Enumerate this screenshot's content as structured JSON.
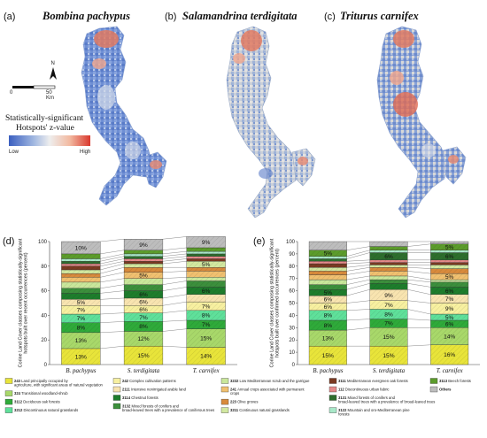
{
  "panels": {
    "a": {
      "letter": "(a)",
      "species": "Bombina pachypus"
    },
    "b": {
      "letter": "(b)",
      "species": "Salamandrina terdigitata"
    },
    "c": {
      "letter": "(c)",
      "species": "Triturus carnifex"
    },
    "d": {
      "letter": "(d)"
    },
    "e": {
      "letter": "(e)"
    }
  },
  "map_legend": {
    "north": "N",
    "scale_0": "0",
    "scale_50": "50",
    "scale_unit": "Km",
    "title_line1": "Statistically-significant",
    "title_line2": "Hotspots' z-value",
    "low": "Low",
    "high": "High",
    "gradient_colors": [
      "#3b5fc0",
      "#9fb6e0",
      "#eeeeee",
      "#f2b9a0",
      "#d9382e"
    ]
  },
  "chart_data": [
    {
      "type": "bar",
      "stacked": true,
      "panel": "(d)",
      "categories": [
        "B. pachypus",
        "S. terdigitata",
        "T. carnifex"
      ],
      "ylabel": "Corine Land Cover classes composing statistically-significant hotspots built over recent occurrences (percent)",
      "ylim": [
        0,
        100
      ],
      "yticks": [
        0,
        20,
        40,
        60,
        80,
        100
      ],
      "series": [
        {
          "code": "243",
          "color": "#e8e43a",
          "values": [
            13,
            15,
            14
          ]
        },
        {
          "code": "324",
          "color": "#a8d86a",
          "values": [
            13,
            12,
            15
          ]
        },
        {
          "code": "3112",
          "color": "#2faa3a",
          "values": [
            8,
            8,
            7
          ]
        },
        {
          "code": "3212",
          "color": "#5fe09a",
          "values": [
            7,
            7,
            8
          ]
        },
        {
          "code": "242",
          "color": "#f7f0a0",
          "values": [
            7,
            6,
            7
          ]
        },
        {
          "code": "2111",
          "color": "#f8e4b0",
          "values": [
            5,
            6,
            6
          ]
        },
        {
          "code": "3114",
          "color": "#1e7d2c",
          "values": [
            5,
            6,
            6
          ]
        },
        {
          "code": "3132",
          "color": "#3c8f3c",
          "values": [
            4,
            5,
            5
          ]
        },
        {
          "code": "3232",
          "color": "#c9e79b",
          "values": [
            5,
            5,
            3
          ]
        },
        {
          "code": "241",
          "color": "#f0c070",
          "values": [
            4,
            5,
            5
          ]
        },
        {
          "code": "223",
          "color": "#d88a3c",
          "values": [
            3,
            4,
            3
          ]
        },
        {
          "code": "3211",
          "color": "#d2e8a0",
          "values": [
            3,
            3,
            5
          ]
        },
        {
          "code": "3111",
          "color": "#7a3a22",
          "values": [
            3,
            2,
            2
          ]
        },
        {
          "code": "112",
          "color": "#e58a8a",
          "values": [
            2,
            2,
            2
          ]
        },
        {
          "code": "3131",
          "color": "#2d6e2d",
          "values": [
            2,
            2,
            2
          ]
        },
        {
          "code": "3122",
          "color": "#a8e8c8",
          "values": [
            2,
            2,
            2
          ]
        },
        {
          "code": "3113",
          "color": "#5c9c2c",
          "values": [
            4,
            3,
            3
          ]
        },
        {
          "code": "Others",
          "color": "#bdbdbd",
          "values": [
            10,
            9,
            9
          ]
        }
      ],
      "data_labels": {
        "243": [
          "13%",
          "15%",
          "14%"
        ],
        "324": [
          "13%",
          "12%",
          "15%"
        ],
        "3112": [
          "8%",
          "8%",
          "7%"
        ],
        "3212": [
          "7%",
          "7%",
          "8%"
        ],
        "242": [
          "7%",
          "6%",
          "7%"
        ],
        "2111": [
          "5%",
          "6%",
          ""
        ],
        "3114": [
          "",
          "6%",
          "6%"
        ],
        "241": [
          "",
          "5%",
          ""
        ],
        "3211": [
          "",
          "",
          "5%"
        ],
        "Others": [
          "10%",
          "9%",
          "9%"
        ]
      }
    },
    {
      "type": "bar",
      "stacked": true,
      "panel": "(e)",
      "categories": [
        "B. pachypus",
        "S. terdigitata",
        "T. carnifex"
      ],
      "ylabel": "Corine Land Cover classes composing statistically-significant hotspots built over confirmed occurrences (percent)",
      "ylim": [
        0,
        100
      ],
      "yticks": [
        0,
        10,
        20,
        30,
        40,
        50,
        60,
        70,
        80,
        90,
        100
      ],
      "series": [
        {
          "code": "243",
          "color": "#e8e43a",
          "values": [
            15,
            15,
            16
          ]
        },
        {
          "code": "324",
          "color": "#a8d86a",
          "values": [
            13,
            15,
            14
          ]
        },
        {
          "code": "3112",
          "color": "#2faa3a",
          "values": [
            8,
            7,
            6
          ]
        },
        {
          "code": "3212",
          "color": "#5fe09a",
          "values": [
            8,
            8,
            5
          ]
        },
        {
          "code": "242",
          "color": "#f7f0a0",
          "values": [
            6,
            7,
            9
          ]
        },
        {
          "code": "2111",
          "color": "#f8e4b0",
          "values": [
            6,
            9,
            7
          ]
        },
        {
          "code": "3114",
          "color": "#1e7d2c",
          "values": [
            5,
            5,
            6
          ]
        },
        {
          "code": "3132",
          "color": "#3c8f3c",
          "values": [
            4,
            3,
            4
          ]
        },
        {
          "code": "3232",
          "color": "#c9e79b",
          "values": [
            4,
            3,
            2
          ]
        },
        {
          "code": "241",
          "color": "#f0c070",
          "values": [
            4,
            4,
            5
          ]
        },
        {
          "code": "223",
          "color": "#d88a3c",
          "values": [
            3,
            3,
            4
          ]
        },
        {
          "code": "3211",
          "color": "#d2e8a0",
          "values": [
            3,
            2,
            3
          ]
        },
        {
          "code": "3111",
          "color": "#7a3a22",
          "values": [
            3,
            2,
            2
          ]
        },
        {
          "code": "112",
          "color": "#e58a8a",
          "values": [
            2,
            2,
            2
          ]
        },
        {
          "code": "3131",
          "color": "#2d6e2d",
          "values": [
            2,
            6,
            6
          ]
        },
        {
          "code": "3122",
          "color": "#a8e8c8",
          "values": [
            2,
            2,
            2
          ]
        },
        {
          "code": "3113",
          "color": "#5c9c2c",
          "values": [
            5,
            3,
            5
          ]
        },
        {
          "code": "Others",
          "color": "#bdbdbd",
          "values": [
            7,
            4,
            2
          ]
        }
      ],
      "data_labels": {
        "243": [
          "15%",
          "15%",
          "16%"
        ],
        "324": [
          "13%",
          "15%",
          "14%"
        ],
        "3112": [
          "8%",
          "7%",
          "6%"
        ],
        "3212": [
          "8%",
          "8%",
          "5%"
        ],
        "242": [
          "6%",
          "7%",
          "9%"
        ],
        "2111": [
          "6%",
          "9%",
          "7%"
        ],
        "3114": [
          "5%",
          "",
          "6%"
        ],
        "241": [
          "",
          "",
          "5%"
        ],
        "3131": [
          "",
          "6%",
          "6%"
        ],
        "3113": [
          "5%",
          "",
          "5%"
        ]
      }
    }
  ],
  "legend": [
    {
      "code": "243",
      "color": "#e8e43a",
      "text": "Land principally occupied by agriculture, with significant areas of natural vegetation"
    },
    {
      "code": "324",
      "color": "#a8d86a",
      "text": "Transitional woodland-shrub"
    },
    {
      "code": "3112",
      "color": "#2faa3a",
      "text": "Deciduous oak forests"
    },
    {
      "code": "3212",
      "color": "#5fe09a",
      "text": "Discontinuous natural grasslands"
    },
    {
      "code": "242",
      "color": "#f7f0a0",
      "text": "Complex cultivation patterns"
    },
    {
      "code": "2111",
      "color": "#f8e4b0",
      "text": "Intensive nonirrigated arable land"
    },
    {
      "code": "3114",
      "color": "#1e7d2c",
      "text": "Chestnut forests"
    },
    {
      "code": "3132",
      "color": "#3c8f3c",
      "text": "Mixed forests of conifers and broad-leaved trees with a prevalence of coniferous trees"
    },
    {
      "code": "3232",
      "color": "#c9e79b",
      "text": "Low Mediterranean scrub and the garrigue"
    },
    {
      "code": "241",
      "color": "#f0c070",
      "text": "Annual crops associated with permanent crops"
    },
    {
      "code": "223",
      "color": "#d88a3c",
      "text": "Olive groves"
    },
    {
      "code": "3211",
      "color": "#d2e8a0",
      "text": "Continuous natural grasslands"
    },
    {
      "code": "3111",
      "color": "#7a3a22",
      "text": "Mediterranean evergreen oak forests"
    },
    {
      "code": "112",
      "color": "#e58a8a",
      "text": "Discontinuous urban fabric"
    },
    {
      "code": "3131",
      "color": "#2d6e2d",
      "text": "Mixed forests of conifers and broad-leaved trees with a prevalence of broad-leaved trees"
    },
    {
      "code": "3122",
      "color": "#a8e8c8",
      "text": "Mountain and oro-Mediterranean pine forests"
    },
    {
      "code": "3113",
      "color": "#5c9c2c",
      "text": "Beech forests"
    },
    {
      "code": "Others",
      "color": "#bdbdbd",
      "text": ""
    }
  ]
}
